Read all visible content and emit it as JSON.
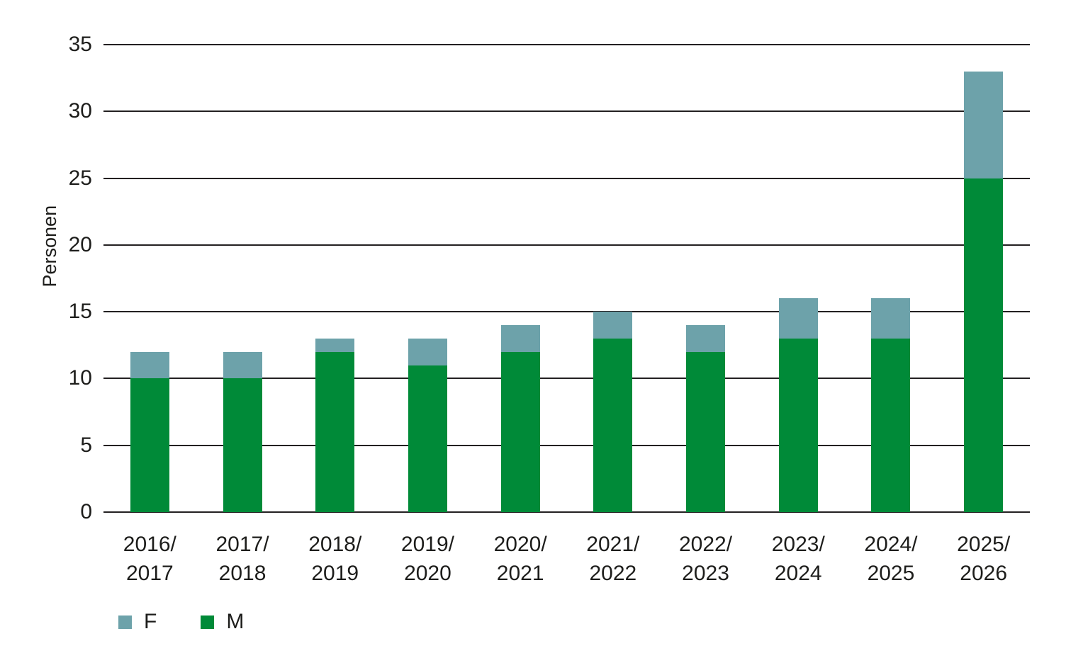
{
  "chart_data": {
    "type": "bar",
    "stacked": true,
    "title": "",
    "xlabel": "",
    "ylabel": "Personen",
    "ylim": [
      0,
      35
    ],
    "ytick_step": 5,
    "yticks": [
      0,
      5,
      10,
      15,
      20,
      25,
      30,
      35
    ],
    "grid": true,
    "categories": [
      {
        "line1": "2016/",
        "line2": "2017"
      },
      {
        "line1": "2017/",
        "line2": "2018"
      },
      {
        "line1": "2018/",
        "line2": "2019"
      },
      {
        "line1": "2019/",
        "line2": "2020"
      },
      {
        "line1": "2020/",
        "line2": "2021"
      },
      {
        "line1": "2021/",
        "line2": "2022"
      },
      {
        "line1": "2022/",
        "line2": "2023"
      },
      {
        "line1": "2023/",
        "line2": "2024"
      },
      {
        "line1": "2024/",
        "line2": "2025"
      },
      {
        "line1": "2025/",
        "line2": "2026"
      }
    ],
    "series": [
      {
        "name": "M",
        "color": "#008A38",
        "values": [
          10,
          10,
          12,
          11,
          12,
          13,
          12,
          13,
          13,
          25
        ]
      },
      {
        "name": "F",
        "color": "#6DA2AA",
        "values": [
          2,
          2,
          1,
          2,
          2,
          2,
          2,
          3,
          3,
          8
        ]
      }
    ],
    "totals": [
      12,
      12,
      13,
      13,
      14,
      15,
      14,
      16,
      16,
      33
    ],
    "legend": {
      "position": "bottom-left",
      "items": [
        {
          "label": "F",
          "color": "#6DA2AA"
        },
        {
          "label": "M",
          "color": "#008A38"
        }
      ]
    },
    "colors": {
      "grid": "#232021",
      "text": "#1d1d1b",
      "background": "#ffffff"
    }
  }
}
